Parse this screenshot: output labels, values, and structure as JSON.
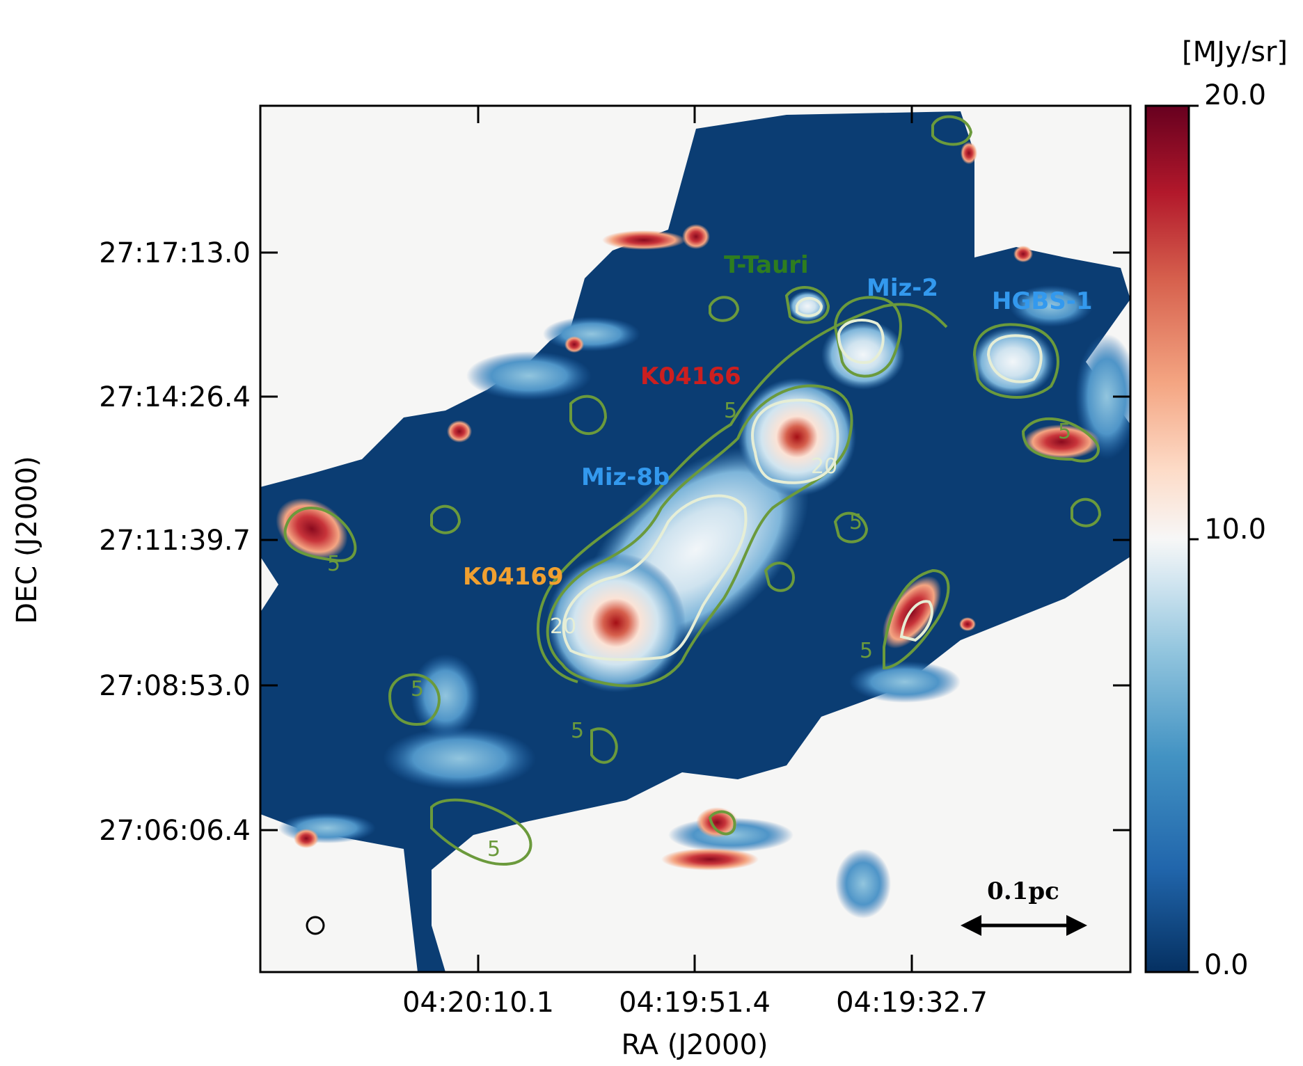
{
  "figure": {
    "colorbar_unit": "[MJy/sr]",
    "colorbar_ticks": [
      "20.0",
      "10.0",
      "0.0"
    ],
    "colorbar_colors": [
      "#67001f",
      "#b2182b",
      "#d6604d",
      "#f4a582",
      "#fddbc7",
      "#f7f7f7",
      "#d1e5f0",
      "#92c5de",
      "#4393c3",
      "#2166ac",
      "#053061"
    ],
    "x_axis_title": "RA (J2000)",
    "y_axis_title": "DEC (J2000)",
    "x_ticks": [
      "04:20:10.1",
      "04:19:51.4",
      "04:19:32.7"
    ],
    "y_ticks": [
      "27:17:13.0",
      "27:14:26.4",
      "27:11:39.7",
      "27:08:53.0",
      "27:06:06.4"
    ],
    "contour_color": "#6b9a3c",
    "inner_contour_color": "#e6eed6",
    "contour_labels": [
      "5",
      "5",
      "5",
      "5",
      "5",
      "5",
      "5",
      "5",
      "20",
      "20"
    ],
    "sources": [
      {
        "name": "T-Tauri",
        "color": "#2e7d1f"
      },
      {
        "name": "Miz-2",
        "color": "#3399ee"
      },
      {
        "name": "HGBS-1",
        "color": "#3399ee"
      },
      {
        "name": "K04166",
        "color": "#cc1f1f"
      },
      {
        "name": "Miz-8b",
        "color": "#3399ee"
      },
      {
        "name": "K04169",
        "color": "#f0a030"
      }
    ],
    "scale_bar": "0.1pc",
    "beam_icon": "circle-beam-icon"
  }
}
